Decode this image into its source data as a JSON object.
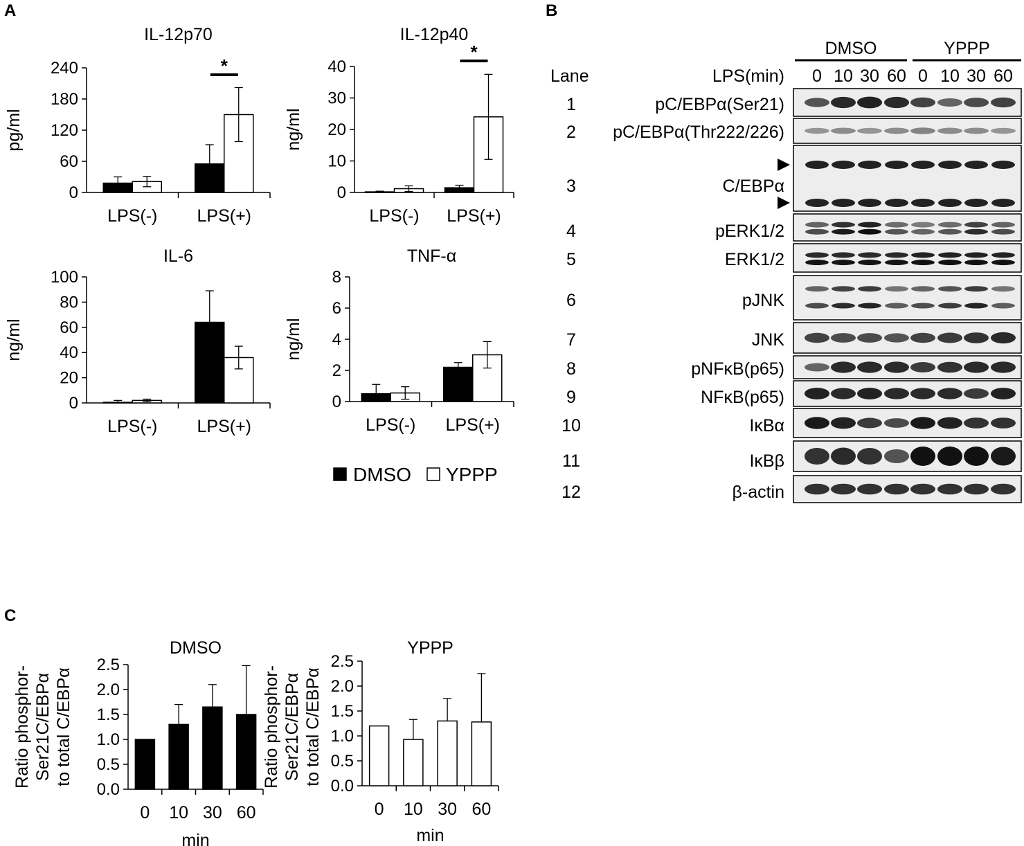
{
  "panels": {
    "a": "A",
    "b": "B",
    "c": "C"
  },
  "legend": {
    "dmso": "DMSO",
    "yppp": "YPPP"
  },
  "chart_data": [
    {
      "type": "bar",
      "panel": "A",
      "title": "IL-12p70",
      "ylabel": "pg/ml",
      "categories": [
        "LPS(-)",
        "LPS(+)"
      ],
      "yticks": [
        "0",
        "60",
        "120",
        "180",
        "240"
      ],
      "ylim": [
        0,
        240
      ],
      "series": [
        {
          "name": "DMSO",
          "values": [
            18,
            55
          ],
          "errors": [
            12,
            37
          ]
        },
        {
          "name": "YPPP",
          "values": [
            21,
            150
          ],
          "errors": [
            10,
            52
          ]
        }
      ],
      "significance": [
        {
          "category": "LPS(+)",
          "label": "*"
        }
      ]
    },
    {
      "type": "bar",
      "panel": "A",
      "title": "IL-12p40",
      "ylabel": "ng/ml",
      "categories": [
        "LPS(-)",
        "LPS(+)"
      ],
      "yticks": [
        "0",
        "10",
        "20",
        "30",
        "40"
      ],
      "ylim": [
        0,
        40
      ],
      "series": [
        {
          "name": "DMSO",
          "values": [
            0.2,
            1.5
          ],
          "errors": [
            0.2,
            0.8
          ]
        },
        {
          "name": "YPPP",
          "values": [
            1.2,
            24
          ],
          "errors": [
            0.9,
            13.5
          ]
        }
      ],
      "significance": [
        {
          "category": "LPS(+)",
          "label": "*"
        }
      ]
    },
    {
      "type": "bar",
      "panel": "A",
      "title": "IL-6",
      "ylabel": "ng/ml",
      "categories": [
        "LPS(-)",
        "LPS(+)"
      ],
      "yticks": [
        "0",
        "20",
        "40",
        "60",
        "80",
        "100"
      ],
      "ylim": [
        0,
        100
      ],
      "series": [
        {
          "name": "DMSO",
          "values": [
            0.5,
            64
          ],
          "errors": [
            1.5,
            25
          ]
        },
        {
          "name": "YPPP",
          "values": [
            2,
            36
          ],
          "errors": [
            1,
            9
          ]
        }
      ]
    },
    {
      "type": "bar",
      "panel": "A",
      "title": "TNF-α",
      "ylabel": "ng/ml",
      "categories": [
        "LPS(-)",
        "LPS(+)"
      ],
      "yticks": [
        "0",
        "2",
        "4",
        "6",
        "8"
      ],
      "ylim": [
        0,
        8
      ],
      "series": [
        {
          "name": "DMSO",
          "values": [
            0.5,
            2.2
          ],
          "errors": [
            0.6,
            0.3
          ]
        },
        {
          "name": "YPPP",
          "values": [
            0.55,
            3.0
          ],
          "errors": [
            0.4,
            0.85
          ]
        }
      ]
    },
    {
      "type": "bar",
      "panel": "C",
      "title": "DMSO",
      "ylabel": "Ratio phosphor-\nSer21C/EBPα\nto total C/EBPα",
      "xlabel": "min",
      "categories": [
        "0",
        "10",
        "30",
        "60"
      ],
      "yticks": [
        "0.0",
        "0.5",
        "1.0",
        "1.5",
        "2.0",
        "2.5"
      ],
      "ylim": [
        0,
        2.5
      ],
      "series": [
        {
          "name": "DMSO",
          "values": [
            1.0,
            1.3,
            1.65,
            1.5
          ],
          "errors": [
            0,
            0.4,
            0.45,
            0.98
          ]
        }
      ]
    },
    {
      "type": "bar",
      "panel": "C",
      "title": "YPPP",
      "ylabel": "Ratio phosphor-\nSer21C/EBPα\nto total C/EBPα",
      "xlabel": "min",
      "categories": [
        "0",
        "10",
        "30",
        "60"
      ],
      "yticks": [
        "0.0",
        "0.5",
        "1.0",
        "1.5",
        "2.0",
        "2.5"
      ],
      "ylim": [
        0,
        2.5
      ],
      "series": [
        {
          "name": "YPPP",
          "values": [
            1.2,
            0.93,
            1.3,
            1.28
          ],
          "errors": [
            0,
            0.4,
            0.45,
            0.97
          ]
        }
      ]
    }
  ],
  "western_blot": {
    "groups": [
      "DMSO",
      "YPPP"
    ],
    "lane_header": "Lane",
    "lps_header": "LPS(min)",
    "timepoints": [
      "0",
      "10",
      "30",
      "60",
      "0",
      "10",
      "30",
      "60"
    ],
    "rows": [
      {
        "lane": "1",
        "label": "pC/EBPα(Ser21)",
        "intensity": [
          0.6,
          0.85,
          0.9,
          0.85,
          0.7,
          0.5,
          0.65,
          0.7
        ]
      },
      {
        "lane": "2",
        "label": "pC/EBPα(Thr222/226)",
        "intensity": [
          0.2,
          0.25,
          0.2,
          0.25,
          0.3,
          0.25,
          0.25,
          0.2
        ]
      },
      {
        "lane": "3",
        "label": "C/EBPα",
        "intensity": [
          0.9,
          0.9,
          0.9,
          0.9,
          0.9,
          0.9,
          0.9,
          0.9
        ]
      },
      {
        "lane": "4",
        "label": "pERK1/2",
        "intensity": [
          0.5,
          0.8,
          0.9,
          0.45,
          0.35,
          0.45,
          0.7,
          0.5
        ]
      },
      {
        "lane": "5",
        "label": "ERK1/2",
        "intensity": [
          0.85,
          0.85,
          0.85,
          0.85,
          0.9,
          0.9,
          0.9,
          0.9
        ]
      },
      {
        "lane": "6",
        "label": "pJNK",
        "intensity": [
          0.5,
          0.7,
          0.75,
          0.4,
          0.5,
          0.6,
          0.75,
          0.4
        ]
      },
      {
        "lane": "7",
        "label": "JNK",
        "intensity": [
          0.7,
          0.65,
          0.65,
          0.6,
          0.7,
          0.75,
          0.8,
          0.85
        ]
      },
      {
        "lane": "8",
        "label": "pNFκB(p65)",
        "intensity": [
          0.5,
          0.85,
          0.85,
          0.85,
          0.75,
          0.8,
          0.85,
          0.85
        ]
      },
      {
        "lane": "9",
        "label": "NFκB(p65)",
        "intensity": [
          0.9,
          0.85,
          0.9,
          0.85,
          0.85,
          0.85,
          0.75,
          0.9
        ]
      },
      {
        "lane": "10",
        "label": "IκBα",
        "intensity": [
          0.95,
          0.9,
          0.75,
          0.65,
          0.95,
          0.9,
          0.8,
          0.8
        ]
      },
      {
        "lane": "11",
        "label": "IκBβ",
        "intensity": [
          0.8,
          0.85,
          0.8,
          0.6,
          1.0,
          1.0,
          1.0,
          0.95
        ]
      },
      {
        "lane": "12",
        "label": "β-actin",
        "intensity": [
          0.8,
          0.8,
          0.8,
          0.8,
          0.8,
          0.8,
          0.8,
          0.8
        ]
      }
    ]
  },
  "colors": {
    "dmso": "#000000",
    "yppp": "#ffffff",
    "axis": "#000000",
    "band": "#111111",
    "blot_bg": "#ededed"
  }
}
